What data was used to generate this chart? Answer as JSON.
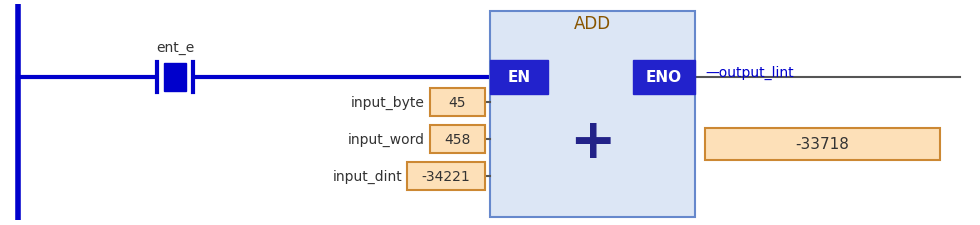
{
  "bg_color": "#ffffff",
  "rail_color": "#0000cc",
  "wire_color": "#0000cc",
  "h_wire_color": "#555555",
  "contact_color": "#0000cc",
  "block_fill": "#dce6f5",
  "block_border": "#6688cc",
  "en_eno_color": "#2222cc",
  "en_eno_text_color": "#ffffff",
  "value_box_fill": "#fde0b8",
  "value_box_border": "#cc8833",
  "output_box_fill": "#fde0b8",
  "output_box_border": "#cc8833",
  "text_color": "#333333",
  "title_color": "#885500",
  "plus_color": "#222288",
  "output_label_color": "#0000cc",
  "title": "ADD",
  "contact_label": "ent_e",
  "inputs": [
    {
      "label": "input_byte",
      "value": "45"
    },
    {
      "label": "input_word",
      "value": "458"
    },
    {
      "label": "input_dint",
      "value": "-34221"
    }
  ],
  "output_label": "output_lint",
  "output_value": "-33718",
  "fig_w": 9.8,
  "fig_h": 2.26,
  "dpi": 100
}
